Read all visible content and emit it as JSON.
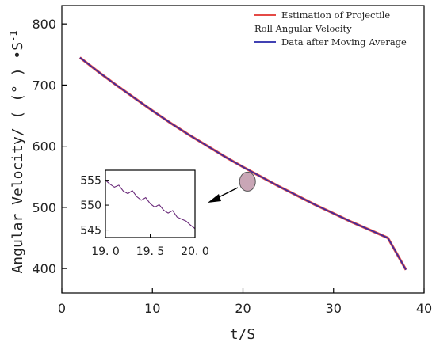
{
  "chart_data": [
    {
      "type": "line",
      "xlabel": "t/S",
      "ylabel": "Angular Velocity/ ( (° ) •S",
      "ylabel_sup": "-1",
      "xlim": [
        0,
        40
      ],
      "ylim": [
        360,
        830
      ],
      "x_ticks": [
        "0",
        "10",
        "20",
        "30",
        "40"
      ],
      "y_ticks": [
        "400",
        "500",
        "600",
        "700",
        "800"
      ],
      "legend_placement": "top-right",
      "legend": [
        {
          "label": "Estimation of Projectile",
          "color": "#e0312b"
        },
        {
          "label": "Roll Angular Velocity",
          "color": null
        },
        {
          "label": "Data after Moving Average",
          "color": "#2626a8"
        }
      ],
      "series": [
        {
          "name": "Estimation of Projectile Roll Angular Velocity",
          "color": "#e0312b",
          "x": [
            2,
            4,
            6,
            8,
            10,
            12,
            14,
            16,
            18,
            20,
            22,
            24,
            26,
            28,
            30,
            32,
            34,
            36,
            38
          ],
          "values": [
            745,
            722,
            700,
            679,
            658,
            638,
            619,
            601,
            583,
            566,
            550,
            534,
            519,
            504,
            490,
            476,
            463,
            450,
            398
          ]
        },
        {
          "name": "Data after Moving Average",
          "color": "#2626a8",
          "x": [
            2,
            4,
            6,
            8,
            10,
            12,
            14,
            16,
            18,
            20,
            22,
            24,
            26,
            28,
            30,
            32,
            34,
            36,
            38
          ],
          "values": [
            745,
            722,
            700,
            679,
            658,
            638,
            619,
            601,
            583,
            566,
            550,
            534,
            519,
            504,
            490,
            476,
            463,
            450,
            398
          ]
        }
      ],
      "highlight": {
        "x": 20.5,
        "y": 542,
        "color": "#c9a6b6"
      }
    },
    {
      "type": "line",
      "role": "inset",
      "xlim": [
        19.0,
        20.0
      ],
      "ylim": [
        543.5,
        557
      ],
      "x_ticks": [
        "19. 0",
        "19. 5",
        "20. 0"
      ],
      "y_ticks": [
        "555",
        "550",
        "545"
      ],
      "series": [
        {
          "name": "Data after Moving Average",
          "color": "#6a2a7a",
          "x": [
            19.0,
            19.05,
            19.1,
            19.15,
            19.2,
            19.25,
            19.3,
            19.35,
            19.4,
            19.45,
            19.5,
            19.55,
            19.6,
            19.65,
            19.7,
            19.75,
            19.8,
            19.85,
            19.9,
            19.95,
            20.0
          ],
          "values": [
            555.0,
            554.2,
            553.6,
            554.0,
            552.8,
            552.3,
            552.9,
            551.7,
            551.0,
            551.5,
            550.3,
            549.6,
            550.1,
            549.0,
            548.4,
            548.9,
            547.6,
            547.2,
            546.8,
            546.0,
            545.3
          ]
        }
      ]
    }
  ]
}
